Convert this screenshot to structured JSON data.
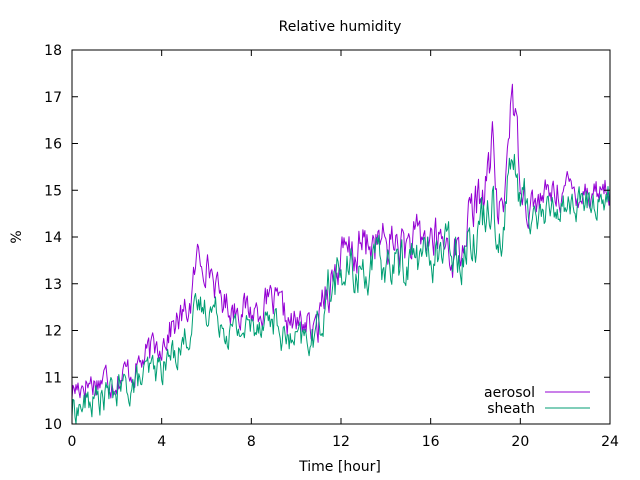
{
  "chart_data": {
    "type": "line",
    "title": "Relative humidity",
    "xlabel": "Time [hour]",
    "ylabel": "%",
    "xlim": [
      0,
      24
    ],
    "ylim": [
      10,
      18
    ],
    "xticks": [
      0,
      4,
      8,
      12,
      16,
      20,
      24
    ],
    "yticks": [
      10,
      11,
      12,
      13,
      14,
      15,
      16,
      17,
      18
    ],
    "grid": false,
    "legend_position": "bottom-right",
    "series": [
      {
        "name": "aerosol",
        "color": "#9400d3",
        "anchors": [
          [
            0,
            10.7
          ],
          [
            0.5,
            10.9
          ],
          [
            1,
            10.9
          ],
          [
            1.5,
            11.0
          ],
          [
            2,
            11.0
          ],
          [
            2.5,
            11.1
          ],
          [
            3,
            11.3
          ],
          [
            3.5,
            11.5
          ],
          [
            4,
            11.8
          ],
          [
            4.5,
            12.1
          ],
          [
            5,
            12.3
          ],
          [
            5.3,
            12.6
          ],
          [
            5.6,
            13.6
          ],
          [
            5.9,
            13.5
          ],
          [
            6.2,
            13.3
          ],
          [
            6.5,
            12.8
          ],
          [
            6.8,
            12.6
          ],
          [
            7.2,
            12.5
          ],
          [
            7.6,
            12.5
          ],
          [
            8,
            12.4
          ],
          [
            8.4,
            12.5
          ],
          [
            8.8,
            12.6
          ],
          [
            9.2,
            12.5
          ],
          [
            9.6,
            12.2
          ],
          [
            10,
            12.1
          ],
          [
            10.4,
            12.2
          ],
          [
            10.8,
            11.9
          ],
          [
            11.0,
            12.1
          ],
          [
            11.2,
            12.9
          ],
          [
            11.6,
            13.1
          ],
          [
            12,
            13.5
          ],
          [
            12.5,
            13.6
          ],
          [
            13,
            13.8
          ],
          [
            13.5,
            13.9
          ],
          [
            14,
            13.8
          ],
          [
            14.5,
            13.9
          ],
          [
            15,
            13.8
          ],
          [
            15.5,
            13.9
          ],
          [
            16,
            14.0
          ],
          [
            16.5,
            13.9
          ],
          [
            17,
            13.7
          ],
          [
            17.4,
            13.6
          ],
          [
            17.6,
            14.3
          ],
          [
            18,
            14.6
          ],
          [
            18.5,
            15.2
          ],
          [
            18.8,
            16.0
          ],
          [
            19.0,
            14.3
          ],
          [
            19.3,
            14.9
          ],
          [
            19.6,
            17.3
          ],
          [
            19.9,
            15.8
          ],
          [
            20.2,
            15.0
          ],
          [
            20.5,
            14.7
          ],
          [
            21,
            14.8
          ],
          [
            21.5,
            15.0
          ],
          [
            22,
            15.0
          ],
          [
            22.5,
            15.0
          ],
          [
            23,
            15.0
          ],
          [
            23.5,
            15.0
          ],
          [
            24,
            15.1
          ]
        ]
      },
      {
        "name": "sheath",
        "color": "#009e73",
        "anchors": [
          [
            0,
            10.3
          ],
          [
            0.5,
            10.4
          ],
          [
            1,
            10.5
          ],
          [
            1.5,
            10.6
          ],
          [
            2,
            10.7
          ],
          [
            2.5,
            10.8
          ],
          [
            3,
            10.9
          ],
          [
            3.5,
            11.1
          ],
          [
            4,
            11.2
          ],
          [
            4.5,
            11.5
          ],
          [
            5,
            11.8
          ],
          [
            5.4,
            12.2
          ],
          [
            5.7,
            12.5
          ],
          [
            6.2,
            12.5
          ],
          [
            6.6,
            12.3
          ],
          [
            7.0,
            12.0
          ],
          [
            7.5,
            12.0
          ],
          [
            8,
            12.1
          ],
          [
            8.5,
            12.3
          ],
          [
            9,
            12.2
          ],
          [
            9.5,
            11.8
          ],
          [
            10,
            11.7
          ],
          [
            10.5,
            11.8
          ],
          [
            10.8,
            11.8
          ],
          [
            11.1,
            12.3
          ],
          [
            11.4,
            12.9
          ],
          [
            12,
            13.2
          ],
          [
            12.5,
            13.2
          ],
          [
            13,
            13.3
          ],
          [
            13.5,
            13.4
          ],
          [
            14,
            13.4
          ],
          [
            14.5,
            13.4
          ],
          [
            15,
            13.5
          ],
          [
            15.5,
            13.6
          ],
          [
            16,
            13.6
          ],
          [
            16.5,
            13.7
          ],
          [
            17,
            13.8
          ],
          [
            17.4,
            13.7
          ],
          [
            17.7,
            14.0
          ],
          [
            18,
            14.1
          ],
          [
            18.5,
            14.6
          ],
          [
            18.8,
            15.0
          ],
          [
            19.0,
            13.9
          ],
          [
            19.3,
            14.4
          ],
          [
            19.6,
            15.8
          ],
          [
            19.9,
            15.0
          ],
          [
            20.2,
            14.7
          ],
          [
            20.5,
            14.5
          ],
          [
            21,
            14.5
          ],
          [
            21.5,
            14.6
          ],
          [
            22,
            14.7
          ],
          [
            22.5,
            14.7
          ],
          [
            23,
            14.7
          ],
          [
            23.5,
            14.8
          ],
          [
            24,
            14.9
          ]
        ]
      }
    ]
  }
}
